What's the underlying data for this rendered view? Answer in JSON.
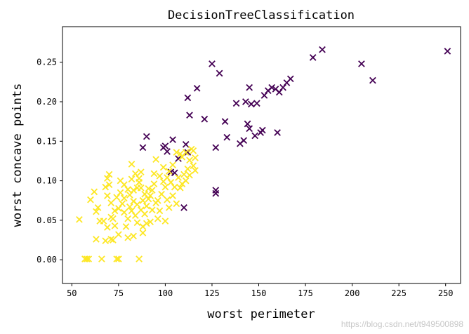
{
  "chart_data": {
    "type": "scatter",
    "title": "DecisionTreeClassification",
    "xlabel": "worst perimeter",
    "ylabel": "worst concave points",
    "xlim": [
      45,
      258
    ],
    "ylim": [
      -0.03,
      0.295
    ],
    "xticks": [
      50,
      75,
      100,
      125,
      150,
      175,
      200,
      225,
      250
    ],
    "yticks": [
      0.0,
      0.05,
      0.1,
      0.15,
      0.2,
      0.25
    ],
    "ytick_labels": [
      "0.00",
      "0.05",
      "0.10",
      "0.15",
      "0.20",
      "0.25"
    ],
    "marker": "x",
    "grid": false,
    "colors": {
      "class0": "#440154",
      "class1": "#fde725"
    },
    "series": [
      {
        "color_key": "class0",
        "points": [
          [
            88,
            0.142
          ],
          [
            90,
            0.156
          ],
          [
            99,
            0.142
          ],
          [
            100,
            0.144
          ],
          [
            101,
            0.137
          ],
          [
            104,
            0.152
          ],
          [
            103,
            0.111
          ],
          [
            105,
            0.11
          ],
          [
            107,
            0.128
          ],
          [
            110,
            0.066
          ],
          [
            111,
            0.146
          ],
          [
            112,
            0.136
          ],
          [
            112,
            0.205
          ],
          [
            113,
            0.183
          ],
          [
            117,
            0.217
          ],
          [
            121,
            0.178
          ],
          [
            125,
            0.248
          ],
          [
            127,
            0.142
          ],
          [
            127,
            0.088
          ],
          [
            127,
            0.084
          ],
          [
            129,
            0.236
          ],
          [
            132,
            0.175
          ],
          [
            133,
            0.155
          ],
          [
            138,
            0.198
          ],
          [
            140,
            0.147
          ],
          [
            142,
            0.151
          ],
          [
            143,
            0.2
          ],
          [
            144,
            0.172
          ],
          [
            145,
            0.218
          ],
          [
            145,
            0.166
          ],
          [
            146,
            0.197
          ],
          [
            148,
            0.157
          ],
          [
            149,
            0.198
          ],
          [
            151,
            0.161
          ],
          [
            152,
            0.164
          ],
          [
            153,
            0.208
          ],
          [
            155,
            0.214
          ],
          [
            157,
            0.218
          ],
          [
            159,
            0.216
          ],
          [
            160,
            0.161
          ],
          [
            161,
            0.212
          ],
          [
            163,
            0.218
          ],
          [
            165,
            0.224
          ],
          [
            167,
            0.229
          ],
          [
            179,
            0.256
          ],
          [
            184,
            0.266
          ],
          [
            205,
            0.248
          ],
          [
            211,
            0.227
          ],
          [
            251,
            0.264
          ]
        ]
      },
      {
        "color_key": "class1",
        "points": [
          [
            54,
            0.051
          ],
          [
            57,
            0.001
          ],
          [
            58,
            0.001
          ],
          [
            59,
            0.001
          ],
          [
            60,
            0.076
          ],
          [
            62,
            0.086
          ],
          [
            63,
            0.026
          ],
          [
            63,
            0.061
          ],
          [
            64,
            0.066
          ],
          [
            65,
            0.049
          ],
          [
            66,
            0.001
          ],
          [
            67,
            0.049
          ],
          [
            68,
            0.092
          ],
          [
            68,
            0.024
          ],
          [
            69,
            0.041
          ],
          [
            69,
            0.081
          ],
          [
            69,
            0.103
          ],
          [
            70,
            0.108
          ],
          [
            70,
            0.095
          ],
          [
            71,
            0.026
          ],
          [
            71,
            0.072
          ],
          [
            71,
            0.054
          ],
          [
            72,
            0.052
          ],
          [
            72,
            0.025
          ],
          [
            73,
            0.062
          ],
          [
            73,
            0.043
          ],
          [
            74,
            0.001
          ],
          [
            74,
            0.079
          ],
          [
            75,
            0.001
          ],
          [
            75,
            0.065
          ],
          [
            75,
            0.032
          ],
          [
            76,
            0.1
          ],
          [
            76,
            0.085
          ],
          [
            77,
            0.071
          ],
          [
            78,
            0.095
          ],
          [
            78,
            0.06
          ],
          [
            78,
            0.078
          ],
          [
            79,
            0.042
          ],
          [
            80,
            0.089
          ],
          [
            80,
            0.052
          ],
          [
            80,
            0.028
          ],
          [
            81,
            0.082
          ],
          [
            81,
            0.067
          ],
          [
            82,
            0.121
          ],
          [
            82,
            0.102
          ],
          [
            82,
            0.062
          ],
          [
            83,
            0.03
          ],
          [
            83,
            0.088
          ],
          [
            83,
            0.074
          ],
          [
            84,
            0.109
          ],
          [
            84,
            0.056
          ],
          [
            85,
            0.091
          ],
          [
            85,
            0.07
          ],
          [
            85,
            0.047
          ],
          [
            86,
            0.103
          ],
          [
            86,
            0.098
          ],
          [
            86,
            0.001
          ],
          [
            87,
            0.091
          ],
          [
            87,
            0.111
          ],
          [
            87,
            0.063
          ],
          [
            88,
            0.075
          ],
          [
            88,
            0.042
          ],
          [
            88,
            0.034
          ],
          [
            89,
            0.083
          ],
          [
            89,
            0.058
          ],
          [
            90,
            0.068
          ],
          [
            90,
            0.046
          ],
          [
            91,
            0.09
          ],
          [
            91,
            0.077
          ],
          [
            92,
            0.081
          ],
          [
            92,
            0.048
          ],
          [
            93,
            0.063
          ],
          [
            93,
            0.088
          ],
          [
            94,
            0.096
          ],
          [
            94,
            0.109
          ],
          [
            95,
            0.127
          ],
          [
            95,
            0.072
          ],
          [
            96,
            0.075
          ],
          [
            96,
            0.052
          ],
          [
            97,
            0.106
          ],
          [
            97,
            0.062
          ],
          [
            98,
            0.083
          ],
          [
            99,
            0.117
          ],
          [
            99,
            0.099
          ],
          [
            100,
            0.092
          ],
          [
            100,
            0.049
          ],
          [
            101,
            0.104
          ],
          [
            101,
            0.076
          ],
          [
            102,
            0.112
          ],
          [
            102,
            0.066
          ],
          [
            103,
            0.098
          ],
          [
            104,
            0.12
          ],
          [
            104,
            0.081
          ],
          [
            105,
            0.092
          ],
          [
            106,
            0.136
          ],
          [
            106,
            0.071
          ],
          [
            107,
            0.104
          ],
          [
            108,
            0.134
          ],
          [
            108,
            0.091
          ],
          [
            109,
            0.13
          ],
          [
            109,
            0.096
          ],
          [
            110,
            0.108
          ],
          [
            111,
            0.136
          ],
          [
            111,
            0.1
          ],
          [
            112,
            0.115
          ],
          [
            113,
            0.107
          ],
          [
            113,
            0.126
          ],
          [
            114,
            0.14
          ],
          [
            115,
            0.138
          ],
          [
            115,
            0.119
          ],
          [
            116,
            0.113
          ],
          [
            116,
            0.129
          ]
        ]
      }
    ]
  },
  "watermark": "https://blog.csdn.net/t949500898"
}
